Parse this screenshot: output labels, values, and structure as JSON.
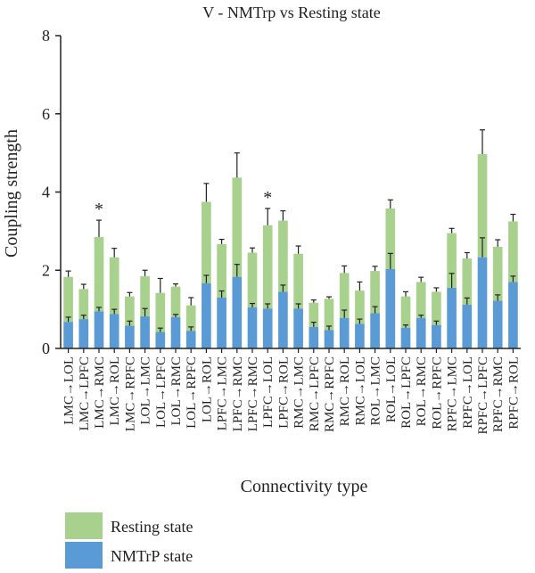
{
  "chart_data": {
    "type": "bar",
    "stacked": true,
    "title": "V - NMTrp vs Resting state",
    "xlabel": "Connectivity type",
    "ylabel": "Coupling strength",
    "ylim": [
      0,
      8
    ],
    "yticks": [
      "0",
      "2",
      "4",
      "6",
      "8"
    ],
    "grid": false,
    "legend_position": "bottom-left",
    "categories": [
      "LMC→LOL",
      "LMC→LPFC",
      "LMC→RMC",
      "LMC→ROL",
      "LMC→RPFC",
      "LOL→LMC",
      "LOL→LPFC",
      "LOL→RMC",
      "LOL→RPFC",
      "LOL→ROL",
      "LPFC→LMC",
      "LPFC→RMC",
      "LPFC→RMC",
      "LPFC→LOL",
      "LPFC→ROL",
      "RMC→LMC",
      "RMC→LPFC",
      "RMC→RPFC",
      "RMC→ROL",
      "RMC→LOL",
      "ROL→LMC",
      "ROL→LOL",
      "ROL→LPFC",
      "ROL→RMC",
      "ROL→RPFC",
      "RPFC→LMC",
      "RPFC→LOL",
      "RPFC→LPFC",
      "RPFC→RMC",
      "RPFC→ROL"
    ],
    "series": [
      {
        "name": "Resting state",
        "color": "#a9d18e",
        "values": [
          1.83,
          1.52,
          2.85,
          2.33,
          1.33,
          1.85,
          1.42,
          1.58,
          1.1,
          3.75,
          2.67,
          4.37,
          2.45,
          3.15,
          3.27,
          2.42,
          1.17,
          1.27,
          1.93,
          1.48,
          1.98,
          3.58,
          1.33,
          1.7,
          1.45,
          2.95,
          2.3,
          4.97,
          2.6,
          3.25
        ],
        "errors": [
          0.15,
          0.12,
          0.43,
          0.23,
          0.1,
          0.15,
          0.37,
          0.07,
          0.2,
          0.47,
          0.12,
          0.63,
          0.12,
          0.43,
          0.25,
          0.2,
          0.07,
          0.05,
          0.18,
          0.22,
          0.12,
          0.22,
          0.12,
          0.12,
          0.1,
          0.12,
          0.15,
          0.62,
          0.18,
          0.18
        ]
      },
      {
        "name": "NMTrP state",
        "color": "#5b9bd5",
        "values": [
          0.68,
          0.75,
          0.95,
          0.88,
          0.58,
          0.82,
          0.42,
          0.8,
          0.45,
          1.67,
          1.3,
          1.83,
          1.05,
          1.02,
          1.45,
          1.02,
          0.55,
          0.47,
          0.78,
          0.63,
          0.9,
          2.03,
          0.53,
          0.78,
          0.6,
          1.55,
          1.12,
          2.33,
          1.22,
          1.7
        ],
        "errors": [
          0.12,
          0.1,
          0.1,
          0.12,
          0.12,
          0.2,
          0.1,
          0.07,
          0.1,
          0.2,
          0.17,
          0.32,
          0.1,
          0.12,
          0.17,
          0.12,
          0.12,
          0.1,
          0.2,
          0.12,
          0.17,
          0.4,
          0.07,
          0.07,
          0.1,
          0.37,
          0.17,
          0.5,
          0.15,
          0.15
        ]
      }
    ],
    "annotations": [
      {
        "category_index": 2,
        "text": "*"
      },
      {
        "category_index": 13,
        "text": "*"
      }
    ]
  }
}
